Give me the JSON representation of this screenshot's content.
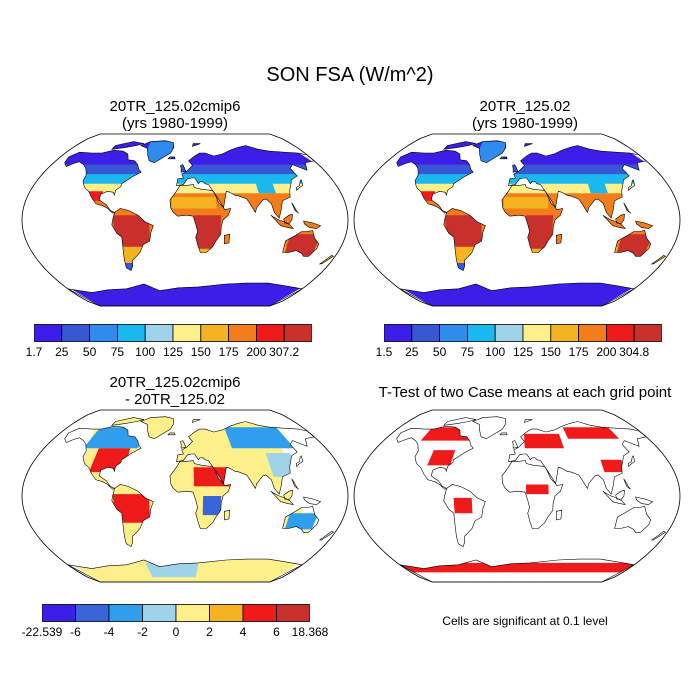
{
  "title": "SON FSA (W/m^2)",
  "panels": [
    {
      "title1": "20TR_125.02cmip6",
      "title2": "(yrs 1980-1999)",
      "type": "absolute"
    },
    {
      "title1": "20TR_125.02",
      "title2": "(yrs 1980-1999)",
      "type": "absolute"
    },
    {
      "title1": "20TR_125.02cmip6",
      "title2": "- 20TR_125.02",
      "type": "difference"
    },
    {
      "title1": "T-Test of two Case means at each grid point",
      "title2": "",
      "type": "ttest"
    }
  ],
  "colorbars": [
    {
      "labels": [
        "1.7",
        "25",
        "50",
        "75",
        "100",
        "125",
        "150",
        "175",
        "200",
        "307.2"
      ],
      "colors": [
        "#3b1ee8",
        "#3757d6",
        "#2f8cec",
        "#19b8ef",
        "#9fd3ea",
        "#fdf08b",
        "#f6b321",
        "#f47d1b",
        "#ef1b1b",
        "#c8302c"
      ]
    },
    {
      "labels": [
        "1.5",
        "25",
        "50",
        "75",
        "100",
        "125",
        "150",
        "175",
        "200",
        "304.8"
      ],
      "colors": [
        "#3b1ee8",
        "#3757d6",
        "#2f8cec",
        "#19b8ef",
        "#9fd3ea",
        "#fdf08b",
        "#f6b321",
        "#f47d1b",
        "#ef1b1b",
        "#c8302c"
      ]
    },
    {
      "labels": [
        "-22.539",
        "-6",
        "-4",
        "-2",
        "0",
        "2",
        "4",
        "6",
        "18.368"
      ],
      "colors": [
        "#3b1ee8",
        "#3866d8",
        "#2f9fed",
        "#9fd3ea",
        "#fdf08b",
        "#f6b321",
        "#ef1b1b",
        "#c8302c"
      ]
    }
  ],
  "note": "Cells are significant at 0.1 level",
  "chart_data": {
    "type": "heatmap",
    "title": "SON FSA (W/m^2)",
    "projection": "Robinson global map",
    "maps": [
      {
        "case": "20TR_125.02cmip6",
        "period": "yrs 1980-1999",
        "min": 1.7,
        "max": 307.2,
        "levels": [
          25,
          50,
          75,
          100,
          125,
          150,
          175,
          200
        ]
      },
      {
        "case": "20TR_125.02",
        "period": "yrs 1980-1999",
        "min": 1.5,
        "max": 304.8,
        "levels": [
          25,
          50,
          75,
          100,
          125,
          150,
          175,
          200
        ]
      },
      {
        "case": "20TR_125.02cmip6 - 20TR_125.02",
        "min": -22.539,
        "max": 18.368,
        "levels": [
          -6,
          -4,
          -2,
          0,
          2,
          4,
          6
        ]
      },
      {
        "case": "T-Test of two Case means at each grid point",
        "significance_level": 0.1
      }
    ]
  }
}
